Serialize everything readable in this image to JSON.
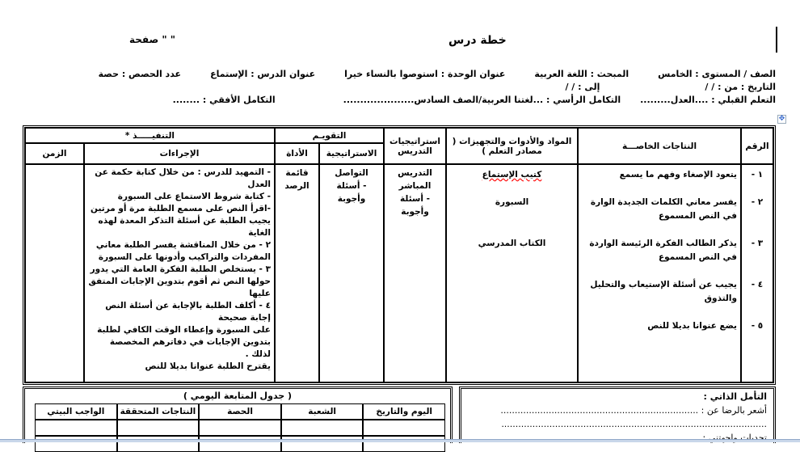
{
  "header": {
    "title": "خطة درس",
    "page_label": "صفحة \"      \""
  },
  "info": {
    "grade": "الصف / المستوى : الخامس",
    "subject": "المبحث : اللغة العربية",
    "unit": "عنوان الوحدة : استوصوا بالنساء خيرا",
    "lesson": "عنوان الدرس : الإستماع",
    "periods": "عدد الحصص : حصة",
    "date_from": "التاريخ : من :     /      /",
    "date_to": "إلى :      /      /",
    "prior": "التعلم القبلي : ....العدل.........",
    "vertical": "التكامل الرأسي : ...لغتنا العربية/الصف السادس.....................",
    "horizontal": "التكامل الأفقي : ........"
  },
  "table": {
    "headers": {
      "number": "الرقم",
      "outcomes": "النتاجات الخاصـــة",
      "materials": "المواد والأدوات والتجهيزات ( مصادر التعلم )",
      "teaching": "استراتيجيات التدريس",
      "evaluation": "التقويـم",
      "eval_strategy": "الاستراتيجية",
      "eval_tool": "الأداة",
      "execution": "التنفيـــــذ *",
      "procedures": "الإجراءات",
      "time": "الزمن"
    },
    "outcomes": [
      {
        "num": "١ -",
        "text": "يتعود الإصغاء وفهم ما يسمع"
      },
      {
        "num": "٢ -",
        "text": "يفسر معاني الكلمات الجديدة الوارة في النص المسموع"
      },
      {
        "num": "٣ -",
        "text": "يذكر   الطالب الفكرة الرئيسة الواردة في النص المسموع"
      },
      {
        "num": "٤ -",
        "text": "يجيب عن أسئلة الإستيعاب والتحليل والتذوق"
      },
      {
        "num": "٥ -",
        "text": "يضع عنوانا بديلا للنص"
      }
    ],
    "materials": [
      "كتيب الإستماع",
      "السبورة",
      "الكتاب المدرسي"
    ],
    "teaching": [
      "التدريس المباشر",
      "- أسئلة وأجوبة"
    ],
    "eval_strategy": [
      "التواصل",
      "- أسئلة وأجوبة"
    ],
    "eval_tool": "قائمة الرصد",
    "procedures": [
      "- التمهيد للدرس : من خلال كتابة حكمة عن العدل",
      "- كتابة شروط الاستماع على السبورة",
      "-اقرأ النص على مسمع الطلبة مرة أو مرتين",
      "يجيب الطلبة  عن أسئلة التذكر المعدة لهذه الغاية",
      "٢ - من خلال المناقشة يفسر الطلبة معاني المفردات والتراكيب وأدونها على السبورة",
      "٣ - يستخلص الطلبة الفكرة العامة التي يدور حولها النص  ثم  أقوم بتدوين الإجابات المتفق عليها",
      "٤ - أكلف الطلبة بالإجابة عن أسئلة النص إجابة صحيحة",
      "على السبورة وإعطاء الوقت الكافي لطلبة بتدوين الإجابات في دفاترهم المخصصة لذلك .",
      "يقترح الطلبة عنوانا بديلا للنص"
    ]
  },
  "reflection": {
    "title": "التأمل الذاتي :",
    "satisfied": "أشعر بالرضا عن :  ......................................................................",
    "dots": "..............................................................................................",
    "challenges": "تحديات واجهتني : ........................................................................"
  },
  "followup": {
    "title": "( جدول المتابعة اليومي )",
    "headers": [
      "اليوم والتاريخ",
      "الشعبة",
      "الحصة",
      "النتاجات المتحققة",
      "الواجب البيتي"
    ]
  }
}
